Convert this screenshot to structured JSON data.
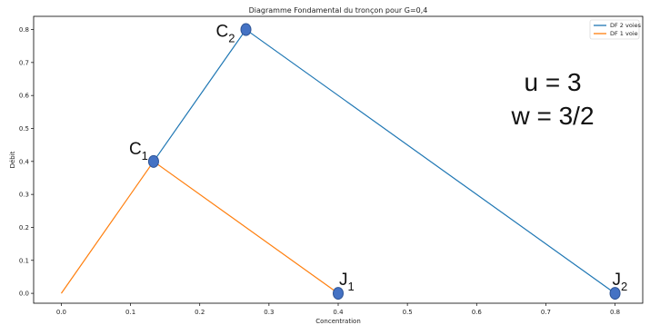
{
  "chart_data": {
    "type": "line",
    "title": "Diagramme Fondamental du tronçon pour G=0,4",
    "xlabel": "Concentration",
    "ylabel": "Débit",
    "xlim": [
      -0.04,
      0.84
    ],
    "ylim": [
      -0.03,
      0.84
    ],
    "xticks": [
      "0.0",
      "0.1",
      "0.2",
      "0.3",
      "0.4",
      "0.5",
      "0.6",
      "0.7",
      "0.8"
    ],
    "yticks": [
      "0.0",
      "0.1",
      "0.2",
      "0.3",
      "0.4",
      "0.5",
      "0.6",
      "0.7",
      "0.8"
    ],
    "legend_position": "top-right",
    "series": [
      {
        "name": "DF 2 voies",
        "color": "#1f77b4",
        "x": [
          0.1333,
          0.2667,
          0.8
        ],
        "y": [
          0.4,
          0.8,
          0.0
        ]
      },
      {
        "name": "DF 1 voie",
        "color": "#ff7f0e",
        "x": [
          0.0,
          0.1333,
          0.4
        ],
        "y": [
          0.0,
          0.4,
          0.0
        ]
      }
    ],
    "markers": [
      {
        "label": "C",
        "sub": "1",
        "x": 0.1333,
        "y": 0.4
      },
      {
        "label": "C",
        "sub": "2",
        "x": 0.2667,
        "y": 0.8
      },
      {
        "label": "J",
        "sub": "1",
        "x": 0.4,
        "y": 0.0
      },
      {
        "label": "J",
        "sub": "2",
        "x": 0.8,
        "y": 0.0
      }
    ],
    "marker_color": "#4472c4",
    "annotations": [
      "u = 3",
      "w = 3/2"
    ]
  }
}
